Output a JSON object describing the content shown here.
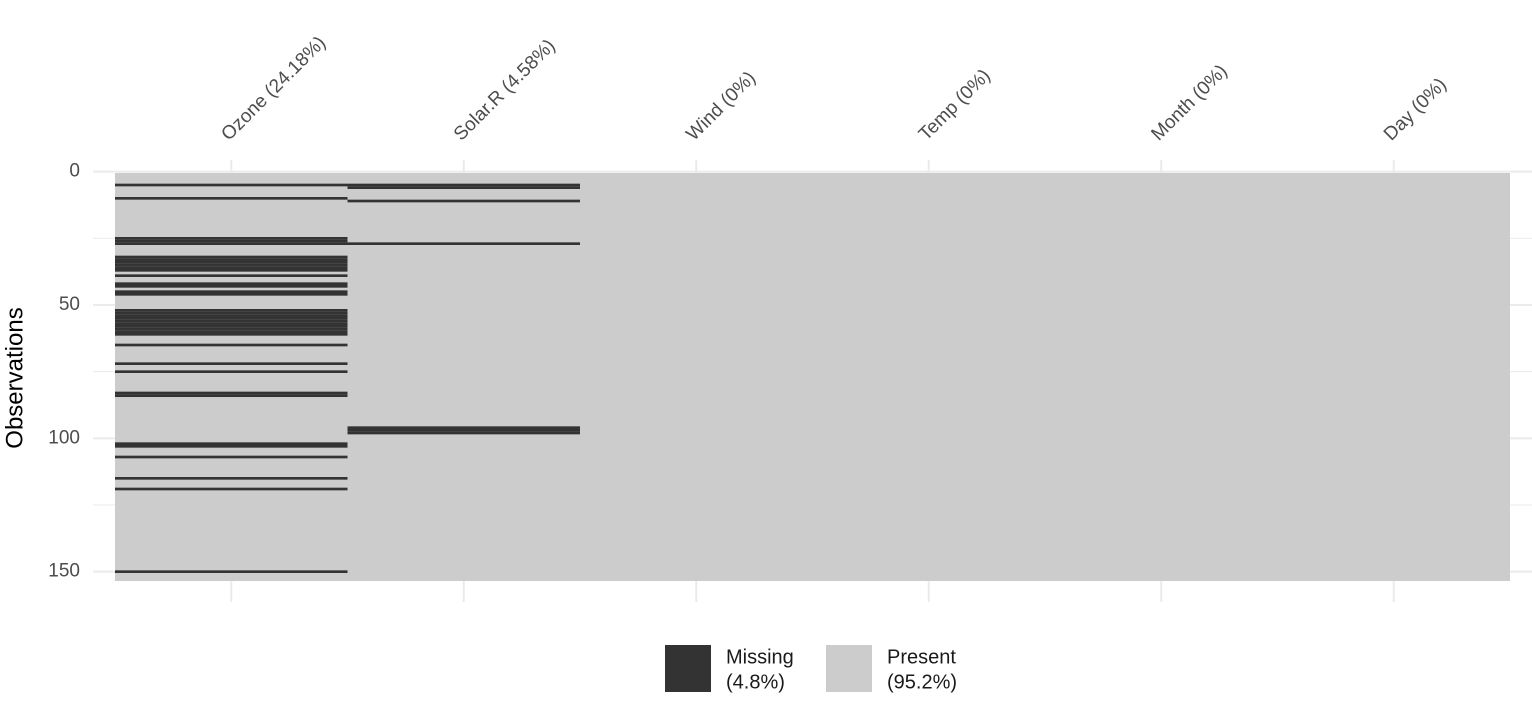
{
  "chart_data": {
    "type": "missingness",
    "ylabel": "Observations",
    "ylim": [
      0.5,
      153.5
    ],
    "yticks": [
      0,
      50,
      100,
      150
    ],
    "yminor_ticks": [
      25,
      75,
      125
    ],
    "grid": true,
    "missing_color": "#333333",
    "present_color": "#cccccc",
    "columns": [
      {
        "name": "Ozone (24.18%)",
        "missing": [
          5,
          10,
          25,
          26,
          27,
          32,
          33,
          34,
          35,
          36,
          37,
          39,
          42,
          43,
          45,
          46,
          52,
          53,
          54,
          55,
          56,
          57,
          58,
          59,
          60,
          61,
          65,
          72,
          75,
          83,
          84,
          102,
          103,
          107,
          115,
          119,
          150
        ]
      },
      {
        "name": "Solar.R (4.58%)",
        "missing": [
          5,
          6,
          11,
          27,
          96,
          97,
          98
        ]
      },
      {
        "name": "Wind (0%)",
        "missing": []
      },
      {
        "name": "Temp (0%)",
        "missing": []
      },
      {
        "name": "Month (0%)",
        "missing": []
      },
      {
        "name": "Day (0%)",
        "missing": []
      }
    ],
    "legend": [
      {
        "lines": [
          "Missing",
          "(4.8%)"
        ],
        "color": "#333333"
      },
      {
        "lines": [
          "Present",
          "(95.2%)"
        ],
        "color": "#cccccc"
      }
    ]
  }
}
